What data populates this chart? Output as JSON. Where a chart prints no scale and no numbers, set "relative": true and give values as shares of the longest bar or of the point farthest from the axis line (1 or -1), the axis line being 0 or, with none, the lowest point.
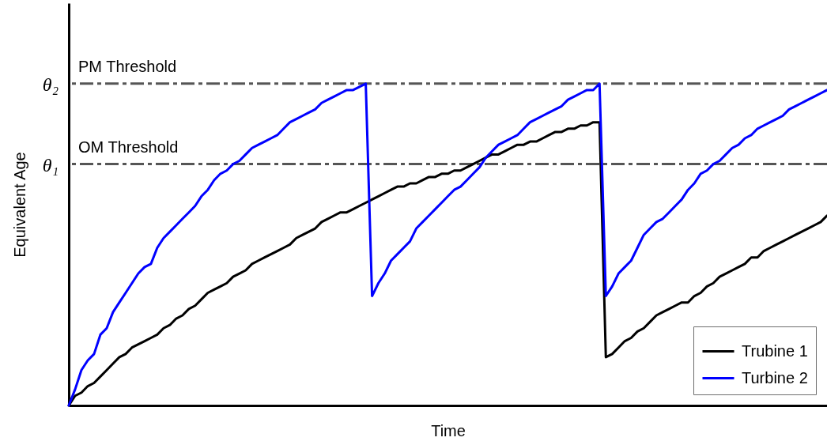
{
  "chart_data": {
    "type": "line",
    "relative": true,
    "xlabel": "Time",
    "ylabel": "Equivalent Age",
    "categories": [
      null,
      null,
      null,
      null,
      null,
      null,
      null,
      null,
      null,
      null,
      null,
      null,
      null,
      null,
      null,
      null,
      null,
      null,
      null,
      null,
      null,
      null,
      null,
      null,
      null,
      null,
      null,
      null,
      null,
      null,
      null,
      null,
      null,
      null,
      null,
      null,
      null,
      null,
      null,
      null,
      null,
      null,
      null,
      null,
      null,
      null,
      null,
      null,
      null,
      null,
      null,
      null,
      null,
      null,
      null,
      null,
      null,
      null,
      null,
      null,
      null,
      null,
      null,
      null,
      null,
      null,
      null,
      null,
      null,
      null,
      null,
      null,
      null,
      null,
      null,
      null,
      null,
      null,
      null,
      null,
      null,
      null,
      null,
      null,
      null,
      null,
      null,
      null,
      null,
      null,
      null,
      null,
      null,
      null,
      null,
      null,
      null,
      null,
      null,
      null,
      null,
      null,
      null,
      null,
      null,
      null,
      null,
      null,
      null,
      null,
      null,
      null,
      null,
      null,
      null,
      null,
      null,
      null,
      null,
      null,
      null
    ],
    "series": [
      {
        "name": "Trubine 1",
        "color": "#000000",
        "values": [
          0,
          0.03,
          0.04,
          0.06,
          0.07,
          0.09,
          0.11,
          0.13,
          0.15,
          0.16,
          0.18,
          0.19,
          0.2,
          0.21,
          0.22,
          0.24,
          0.25,
          0.27,
          0.28,
          0.3,
          0.31,
          0.33,
          0.35,
          0.36,
          0.37,
          0.38,
          0.4,
          0.41,
          0.42,
          0.44,
          0.45,
          0.46,
          0.47,
          0.48,
          0.49,
          0.5,
          0.52,
          0.53,
          0.54,
          0.55,
          0.57,
          0.58,
          0.59,
          0.6,
          0.6,
          0.61,
          0.62,
          0.63,
          0.64,
          0.65,
          0.66,
          0.67,
          0.68,
          0.68,
          0.69,
          0.69,
          0.7,
          0.71,
          0.71,
          0.72,
          0.72,
          0.73,
          0.73,
          0.74,
          0.75,
          0.76,
          0.77,
          0.78,
          0.78,
          0.79,
          0.8,
          0.81,
          0.81,
          0.82,
          0.82,
          0.83,
          0.84,
          0.85,
          0.85,
          0.86,
          0.86,
          0.87,
          0.87,
          0.88,
          0.88,
          0.15,
          0.16,
          0.18,
          0.2,
          0.21,
          0.23,
          0.24,
          0.26,
          0.28,
          0.29,
          0.3,
          0.31,
          0.32,
          0.32,
          0.34,
          0.35,
          0.37,
          0.38,
          0.4,
          0.41,
          0.42,
          0.43,
          0.44,
          0.46,
          0.46,
          0.48,
          0.49,
          0.5,
          0.51,
          0.52,
          0.53,
          0.54,
          0.55,
          0.56,
          0.57,
          0.59
        ]
      },
      {
        "name": "Turbine 2",
        "color": "#0000ff",
        "values": [
          0,
          0.05,
          0.11,
          0.14,
          0.16,
          0.22,
          0.24,
          0.29,
          0.32,
          0.35,
          0.38,
          0.41,
          0.43,
          0.44,
          0.49,
          0.52,
          0.54,
          0.56,
          0.58,
          0.6,
          0.62,
          0.65,
          0.67,
          0.7,
          0.72,
          0.73,
          0.75,
          0.76,
          0.78,
          0.8,
          0.81,
          0.82,
          0.83,
          0.84,
          0.86,
          0.88,
          0.89,
          0.9,
          0.91,
          0.92,
          0.94,
          0.95,
          0.96,
          0.97,
          0.98,
          0.98,
          0.99,
          1,
          0.34,
          0.38,
          0.41,
          0.45,
          0.47,
          0.49,
          0.51,
          0.55,
          0.57,
          0.59,
          0.61,
          0.63,
          0.65,
          0.67,
          0.68,
          0.7,
          0.72,
          0.74,
          0.77,
          0.79,
          0.81,
          0.82,
          0.83,
          0.84,
          0.86,
          0.88,
          0.89,
          0.9,
          0.91,
          0.92,
          0.93,
          0.95,
          0.96,
          0.97,
          0.98,
          0.98,
          1,
          0.34,
          0.37,
          0.41,
          0.43,
          0.45,
          0.49,
          0.53,
          0.55,
          0.57,
          0.58,
          0.6,
          0.62,
          0.64,
          0.67,
          0.69,
          0.72,
          0.73,
          0.75,
          0.76,
          0.78,
          0.8,
          0.81,
          0.83,
          0.84,
          0.86,
          0.87,
          0.88,
          0.89,
          0.9,
          0.92,
          0.93,
          0.94,
          0.95,
          0.96,
          0.97,
          0.98
        ]
      }
    ],
    "ref_lines": [
      {
        "axis": "y",
        "value": 1,
        "label": "PM Threshold",
        "color": "#555555",
        "line_style": "dashdot"
      },
      {
        "axis": "y",
        "value": 0.75,
        "label": "OM Threshold",
        "color": "#555555",
        "line_style": "dashdot"
      }
    ],
    "annotations": [
      "θ₂",
      "θ₁"
    ],
    "legend": "bottom right"
  }
}
